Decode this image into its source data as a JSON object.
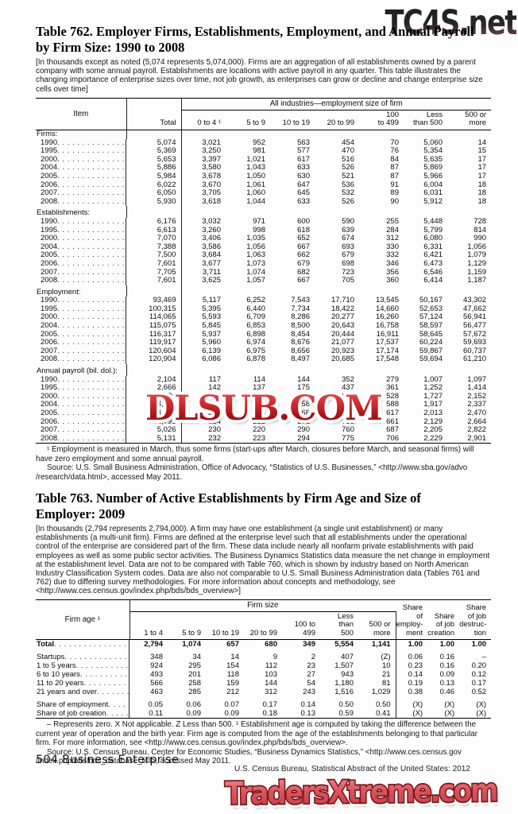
{
  "watermarks": {
    "top": "TC4S.net",
    "middle": "DLSUB.COM",
    "bottom": "TradersXtreme.com"
  },
  "table762": {
    "title_lines": [
      "Table 762. Employer Firms, Establishments, Employment, and Annual Payroll",
      "by Firm Size: 1990 to 2008"
    ],
    "note": "[In thousands except as noted (5,074 represents 5,074,000). Firms are an aggregation of all establishments owned by a parent company with some annual payroll. Establishments are locations with active payroll in any quarter. This table illustrates the changing importance of enterprise sizes over time, not job growth, as enterprises can grow or decline and change enterprise size cells over time]",
    "header": {
      "item": "Item",
      "total": "Total",
      "spanner": "All industries—employment size of firm",
      "columns": [
        [
          "0 to 4 ¹"
        ],
        [
          "5 to 9"
        ],
        [
          "10 to 19"
        ],
        [
          "20 to 99"
        ],
        [
          "100",
          "to 499"
        ],
        [
          "Less",
          "than 500"
        ],
        [
          "500 or",
          "more"
        ]
      ]
    },
    "sections": [
      {
        "label": "Firms:",
        "rows": [
          {
            "year": "1990",
            "values": [
              "5,074",
              "3,021",
              "952",
              "563",
              "454",
              "70",
              "5,060",
              "14"
            ]
          },
          {
            "year": "1995",
            "values": [
              "5,369",
              "3,250",
              "981",
              "577",
              "470",
              "76",
              "5,354",
              "15"
            ]
          },
          {
            "year": "2000",
            "values": [
              "5,653",
              "3,397",
              "1,021",
              "617",
              "516",
              "84",
              "5,635",
              "17"
            ]
          },
          {
            "year": "2004",
            "values": [
              "5,886",
              "3,580",
              "1,043",
              "633",
              "526",
              "87",
              "5,869",
              "17"
            ]
          },
          {
            "year": "2005",
            "values": [
              "5,984",
              "3,678",
              "1,050",
              "630",
              "521",
              "87",
              "5,966",
              "17"
            ]
          },
          {
            "year": "2006",
            "values": [
              "6,022",
              "3,670",
              "1,061",
              "647",
              "536",
              "91",
              "6,004",
              "18"
            ]
          },
          {
            "year": "2007",
            "values": [
              "6,050",
              "3,705",
              "1,060",
              "645",
              "532",
              "89",
              "6,031",
              "18"
            ]
          },
          {
            "year": "2008",
            "values": [
              "5,930",
              "3,618",
              "1,044",
              "633",
              "526",
              "90",
              "5,912",
              "18"
            ]
          }
        ]
      },
      {
        "label": "Establishments:",
        "rows": [
          {
            "year": "1990",
            "values": [
              "6,176",
              "3,032",
              "971",
              "600",
              "590",
              "255",
              "5,448",
              "728"
            ]
          },
          {
            "year": "1995",
            "values": [
              "6,613",
              "3,260",
              "998",
              "618",
              "639",
              "284",
              "5,799",
              "814"
            ]
          },
          {
            "year": "2000",
            "values": [
              "7,070",
              "3,406",
              "1,035",
              "652",
              "674",
              "312",
              "6,080",
              "990"
            ]
          },
          {
            "year": "2004",
            "values": [
              "7,388",
              "3,586",
              "1,056",
              "667",
              "693",
              "330",
              "6,331",
              "1,056"
            ]
          },
          {
            "year": "2005",
            "values": [
              "7,500",
              "3,684",
              "1,063",
              "662",
              "679",
              "332",
              "6,421",
              "1,079"
            ]
          },
          {
            "year": "2006",
            "values": [
              "7,601",
              "3,677",
              "1,073",
              "679",
              "698",
              "346",
              "6,473",
              "1,129"
            ]
          },
          {
            "year": "2007",
            "values": [
              "7,705",
              "3,711",
              "1,074",
              "682",
              "723",
              "356",
              "6,546",
              "1,159"
            ]
          },
          {
            "year": "2008",
            "values": [
              "7,601",
              "3,625",
              "1,057",
              "667",
              "705",
              "360",
              "6,414",
              "1,187"
            ]
          }
        ]
      },
      {
        "label": "Employment:",
        "rows": [
          {
            "year": "1990",
            "values": [
              "93,469",
              "5,117",
              "6,252",
              "7,543",
              "17,710",
              "13,545",
              "50,167",
              "43,302"
            ]
          },
          {
            "year": "1995",
            "values": [
              "100,315",
              "5,395",
              "6,440",
              "7,734",
              "18,422",
              "14,660",
              "52,653",
              "47,662"
            ]
          },
          {
            "year": "2000",
            "values": [
              "114,065",
              "5,593",
              "6,709",
              "8,286",
              "20,277",
              "16,260",
              "57,124",
              "56,941"
            ]
          },
          {
            "year": "2004",
            "values": [
              "115,075",
              "5,845",
              "6,853",
              "8,500",
              "20,643",
              "16,758",
              "58,597",
              "56,477"
            ]
          },
          {
            "year": "2005",
            "values": [
              "116,317",
              "5,937",
              "6,898",
              "8,454",
              "20,444",
              "16,911",
              "58,645",
              "57,672"
            ]
          },
          {
            "year": "2006",
            "values": [
              "119,917",
              "5,960",
              "6,974",
              "8,676",
              "21,077",
              "17,537",
              "60,224",
              "59,693"
            ]
          },
          {
            "year": "2007",
            "values": [
              "120,604",
              "6,139",
              "6,975",
              "8,656",
              "20,923",
              "17,174",
              "59,867",
              "60,737"
            ]
          },
          {
            "year": "2008",
            "values": [
              "120,904",
              "6,086",
              "6,878",
              "8,497",
              "20,685",
              "17,548",
              "59,694",
              "61,210"
            ]
          }
        ]
      },
      {
        "label": "Annual payroll (bil. dol.):",
        "rows": [
          {
            "year": "1990",
            "values": [
              "2,104",
              "117",
              "114",
              "144",
              "352",
              "279",
              "1,007",
              "1,097"
            ]
          },
          {
            "year": "1995",
            "values": [
              "2,666",
              "142",
              "137",
              "175",
              "437",
              "361",
              "1,252",
              "1,414"
            ]
          },
          {
            "year": "2000",
            "values": [
              "3,879",
              "186",
              "174",
              "231",
              "608",
              "528",
              "1,727",
              "2,152"
            ]
          },
          {
            "year": "2004",
            "values": [
              "4,254",
              "206",
              "196",
              "258",
              "670",
              "588",
              "1,917",
              "2,337"
            ]
          },
          {
            "year": "2005",
            "values": [
              "4,483",
              "213",
              "204",
              "268",
              "699",
              "617",
              "2,013",
              "2,470"
            ]
          },
          {
            "year": "2006",
            "values": [
              "4,793",
              "224",
              "212",
              "281",
              "735",
              "661",
              "2,129",
              "2,664"
            ]
          },
          {
            "year": "2007",
            "values": [
              "5,026",
              "230",
              "220",
              "290",
              "760",
              "687",
              "2,205",
              "2,822"
            ]
          },
          {
            "year": "2008",
            "values": [
              "5,131",
              "232",
              "223",
              "294",
              "775",
              "706",
              "2,229",
              "2,901"
            ]
          }
        ]
      }
    ],
    "footnote": "¹ Employment is measured in March, thus some firms (start-ups after March, closures before March, and seasonal firms) will have zero employment and some annual payroll.",
    "source": "Source: U.S. Small Business Administration, Office of Advocacy, “Statistics of U.S. Businesses,” <http://www.sba.gov/advo /research/data.html>, accessed May 2011."
  },
  "table763": {
    "title_lines": [
      "Table 763. Number of Active Establishments by Firm Age and Size of",
      "Employer: 2009"
    ],
    "note": "[In thousands (2,794 represents 2,794,000). A firm may have one establishment (a single unit establishment) or many establishments (a multi-unit firm). Firms are defined at the enterprise level such that all establishments under the operational control of the enterprise are considered part of the firm. These data include nearly all nonfarm private establishments with paid employees as well as some public sector activities. The Business Dynamics Statistics data measure the net change in employment at the establishment level. Data are not to be compared with Table 760, which is shown by industry based on North American Industry Classification System codes. Data are also not comparable to U.S. Small Business Administration data (Tables 761 and 762) due to differing survey methodologies. For more information about concepts and methodology, see <http://www.ces.census.gov/index.php/bds/bds_overview>]",
    "header": {
      "item": "Firm age ¹",
      "spanner": "Firm size",
      "columns": [
        [
          "1 to 4"
        ],
        [
          "5 to 9"
        ],
        [
          "10 to 19"
        ],
        [
          "20 to 99"
        ],
        [
          "100 to",
          "499"
        ],
        [
          "Less",
          "than",
          "500"
        ],
        [
          "500 or",
          "more"
        ]
      ],
      "share_columns": [
        [
          "Share of",
          "employ-",
          "ment"
        ],
        [
          "Share",
          "of job",
          "creation"
        ],
        [
          "Share",
          "of job",
          "destruc-",
          "tion"
        ]
      ]
    },
    "rows": [
      {
        "label": "Total",
        "bold": true,
        "values": [
          "2,794",
          "1,074",
          "657",
          "680",
          "349",
          "5,554",
          "1,141",
          "1.00",
          "1.00",
          "1.00"
        ]
      },
      {
        "label": "Startups",
        "gap": true,
        "values": [
          "348",
          "34",
          "14",
          "9",
          "2",
          "407",
          "(Z)",
          "0.06",
          "0.16",
          "–"
        ]
      },
      {
        "label": "1 to 5 years",
        "values": [
          "924",
          "295",
          "154",
          "112",
          "23",
          "1,507",
          "10",
          "0.23",
          "0.16",
          "0.20"
        ]
      },
      {
        "label": "6 to 10 years",
        "values": [
          "493",
          "201",
          "118",
          "103",
          "27",
          "943",
          "21",
          "0.14",
          "0.09",
          "0.12"
        ]
      },
      {
        "label": "11 to 20 years",
        "values": [
          "566",
          "258",
          "159",
          "144",
          "54",
          "1,180",
          "81",
          "0.19",
          "0.13",
          "0.17"
        ]
      },
      {
        "label": "21 years and over",
        "values": [
          "463",
          "285",
          "212",
          "312",
          "243",
          "1,516",
          "1,029",
          "0.38",
          "0.46",
          "0.52"
        ]
      },
      {
        "label": "Share of employment",
        "gap": true,
        "values": [
          "0.05",
          "0.06",
          "0.07",
          "0.17",
          "0.14",
          "0.50",
          "0.50",
          "(X)",
          "(X)",
          "(X)"
        ]
      },
      {
        "label": "Share of job creation",
        "values": [
          "0.11",
          "0.09",
          "0.09",
          "0.18",
          "0.13",
          "0.59",
          "0.41",
          "(X)",
          "(X)",
          "(X)"
        ]
      }
    ],
    "footnote": "– Represents zero. X Not applicable. Z Less than 500. ¹ Establishment age is computed by taking the difference between the current year of operation and the birth year. Firm age is computed from the age of the establishments belonging to that particular firm. For more information, see <http://www.ces.census.gov/index.php/bds/bds_overview>.",
    "source": "Source: U.S. Census Bureau, Center for Economic Studies, “Business Dynamics Statistics,” <http://www.ces.census.gov /index.php/bds/bds_database_list>, accessed May 2011."
  },
  "footer": {
    "left": "504  Business Enterprise",
    "right": "U.S. Census Bureau, Statistical Abstract of the United States: 2012"
  }
}
